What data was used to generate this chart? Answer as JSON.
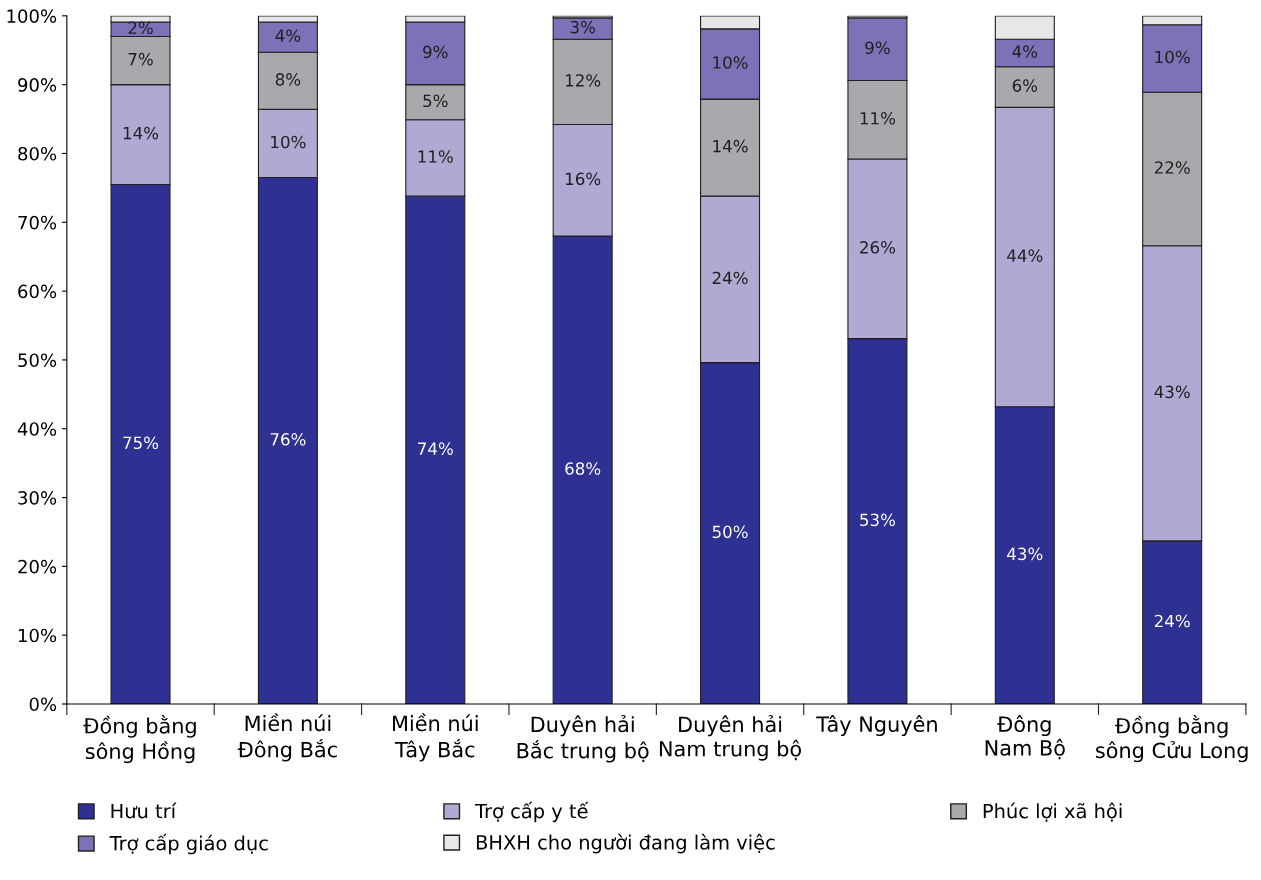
{
  "chart_data": {
    "type": "bar",
    "stacked": true,
    "legend": "bottom",
    "grid": false,
    "categories": [
      "Đồng bằng\nsông Hồng",
      "Miền núi\nĐông Bắc",
      "Miền núi\nTây Bắc",
      "Duyên hải\nBắc trung bộ",
      "Duyên hải\nNam trung bộ",
      "Tây Nguyên",
      "Đông\nNam Bộ",
      "Đồng bằng\nsông Cửu Long"
    ],
    "ylim": [
      0,
      100
    ],
    "yticks": [
      {
        "value": 0,
        "label": "0%"
      },
      {
        "value": 10,
        "label": "10%"
      },
      {
        "value": 20,
        "label": "20%"
      },
      {
        "value": 30,
        "label": "30%"
      },
      {
        "value": 40,
        "label": "40%"
      },
      {
        "value": 50,
        "label": "50%"
      },
      {
        "value": 60,
        "label": "60%"
      },
      {
        "value": 70,
        "label": "70%"
      },
      {
        "value": 80,
        "label": "80%"
      },
      {
        "value": 90,
        "label": "90%"
      },
      {
        "value": 100,
        "label": "100%"
      }
    ],
    "series": [
      {
        "name": "Hưu trí",
        "color": "#2e3192",
        "values": [
          75.5,
          76.5,
          73.8,
          68.0,
          49.6,
          53.1,
          43.2,
          23.7
        ],
        "value_labels": [
          "75%",
          "76%",
          "74%",
          "68%",
          "50%",
          "53%",
          "43%",
          "24%"
        ]
      },
      {
        "name": "Trợ cấp y tế",
        "color": "#aeaad4",
        "values": [
          14.5,
          9.9,
          11.1,
          16.2,
          24.2,
          26.1,
          43.5,
          42.9
        ],
        "value_labels": [
          "14%",
          "10%",
          "11%",
          "16%",
          "24%",
          "26%",
          "44%",
          "43%"
        ]
      },
      {
        "name": "Phúc lợi xã hội",
        "color": "#a7a9ac",
        "values": [
          7.0,
          8.3,
          5.1,
          12.4,
          14.1,
          11.4,
          5.9,
          22.3
        ],
        "value_labels": [
          "7%",
          "8%",
          "5%",
          "12%",
          "14%",
          "11%",
          "6%",
          "22%"
        ]
      },
      {
        "name": "Trợ cấp giáo dục",
        "color": "#7b72b8",
        "values": [
          2.1,
          4.4,
          9.1,
          3.1,
          10.2,
          9.1,
          4.0,
          9.8
        ],
        "value_labels": [
          "2%",
          "4%",
          "9%",
          "3%",
          "10%",
          "9%",
          "4%",
          "10%"
        ]
      },
      {
        "name": "BHXH cho người đang làm việc",
        "color": "#e6e7e8",
        "values": [
          0.9,
          0.9,
          0.9,
          0.3,
          1.9,
          0.3,
          3.4,
          1.3
        ],
        "value_labels": [
          null,
          null,
          null,
          null,
          null,
          null,
          null,
          null
        ]
      }
    ]
  }
}
